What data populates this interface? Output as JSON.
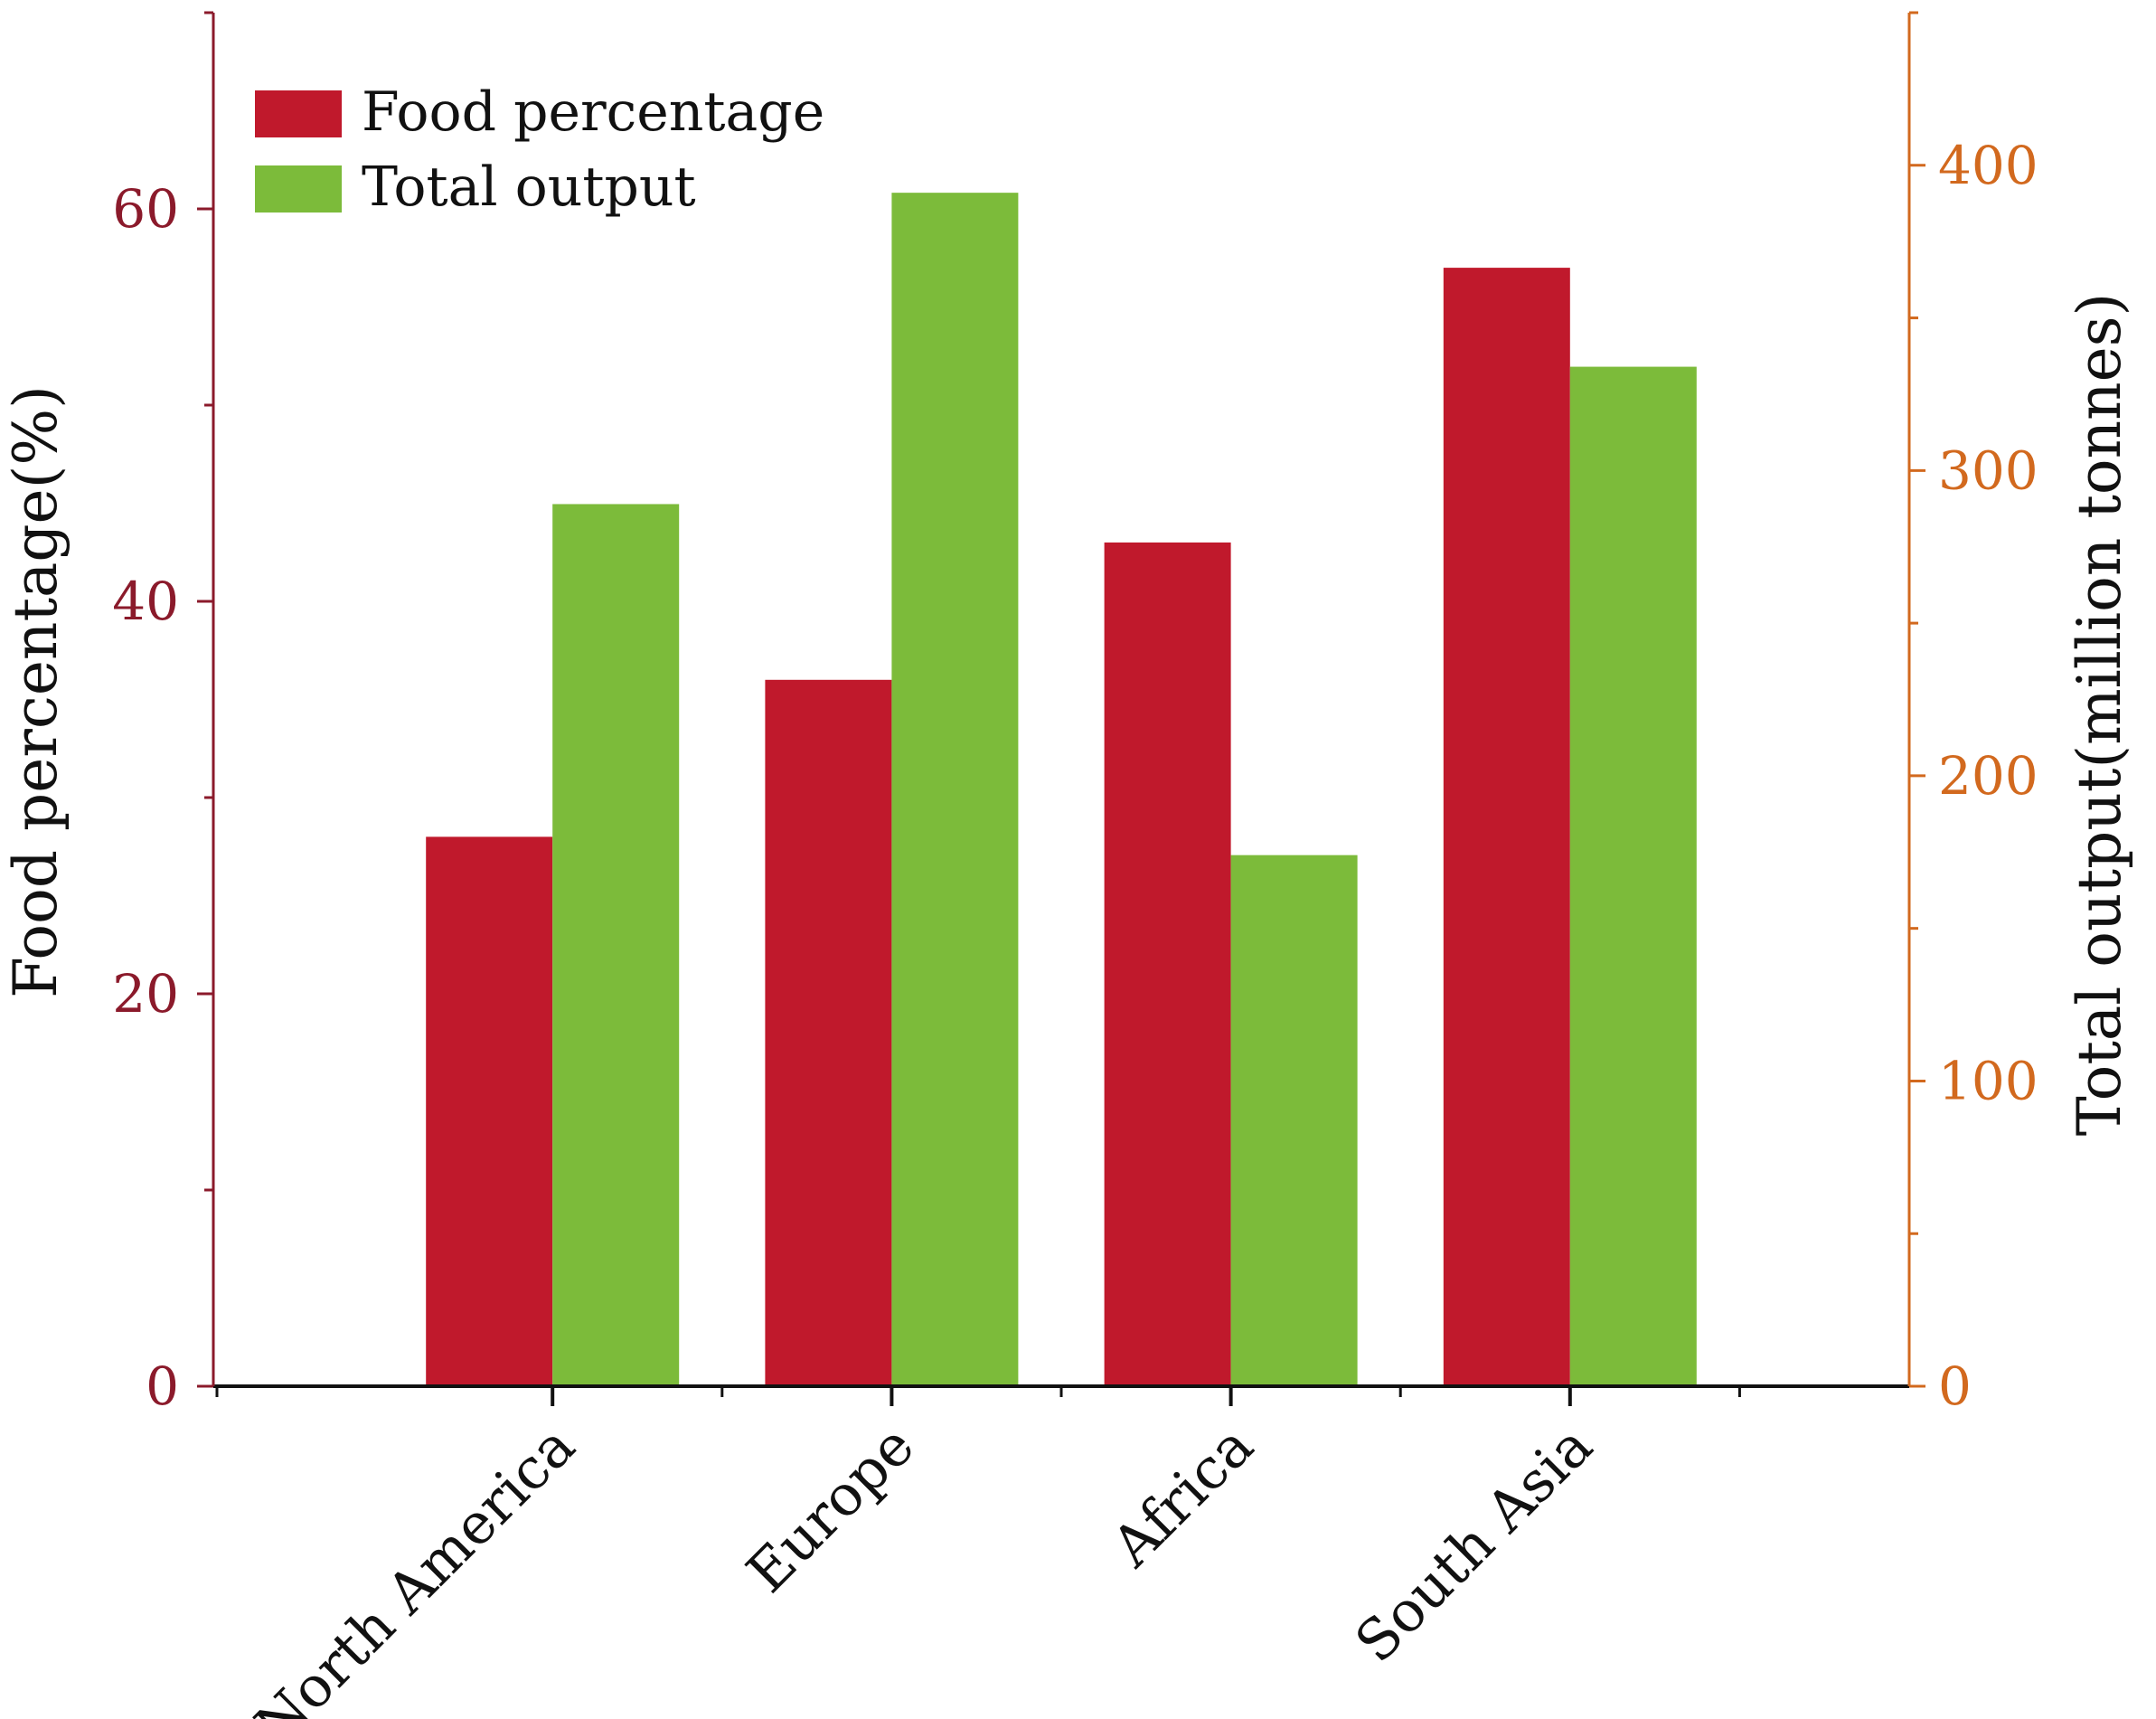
{
  "chart_data": {
    "type": "bar",
    "categories": [
      "North America",
      "Europe",
      "Africa",
      "South Asia"
    ],
    "series": [
      {
        "name": "Food percentage",
        "axis": "left",
        "color": "#c0192c",
        "values": [
          28,
          36,
          43,
          57
        ]
      },
      {
        "name": "Total output",
        "axis": "right",
        "color": "#7cbb3a",
        "values": [
          289,
          391,
          174,
          334
        ]
      }
    ],
    "title": "",
    "xlabel": "",
    "ylabel_left": "Food percentage(%)",
    "ylabel_right": "Total output(million tonnes)",
    "ylim_left": [
      0,
      70
    ],
    "ylim_right": [
      0,
      450
    ],
    "yticks_left": [
      0,
      20,
      40,
      60
    ],
    "yticks_right": [
      0,
      100,
      200,
      300,
      400
    ],
    "left_axis_color": "#8b1a2b",
    "right_axis_color": "#d2691e",
    "grid": false,
    "legend_position": "top-left"
  }
}
